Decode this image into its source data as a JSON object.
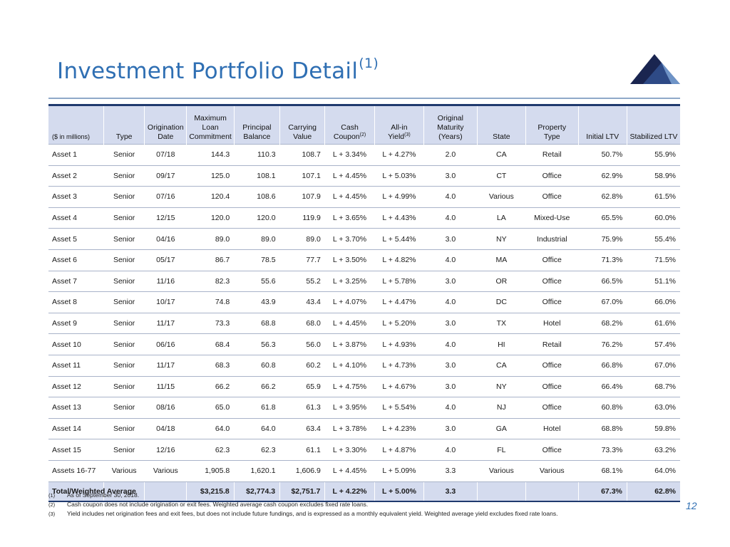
{
  "header": {
    "title": "Investment Portfolio Detail",
    "title_superscript": "(1)"
  },
  "logo": {
    "name": "mountain-logo",
    "colors": [
      "#1a2550",
      "#2e4a86",
      "#6e93c6"
    ]
  },
  "table": {
    "units_label": "($ in millions)",
    "columns": [
      {
        "key": "asset",
        "label": "($ in millions)"
      },
      {
        "key": "type",
        "label": "Type"
      },
      {
        "key": "origination_date",
        "label": "Origination Date"
      },
      {
        "key": "max_commitment",
        "label": "Maximum Loan Commitment"
      },
      {
        "key": "principal_balance",
        "label": "Principal Balance"
      },
      {
        "key": "carrying_value",
        "label": "Carrying Value"
      },
      {
        "key": "cash_coupon",
        "label": "Cash Coupon",
        "footnote": "(2)"
      },
      {
        "key": "all_in_yield",
        "label": "All-in Yield",
        "footnote": "(3)"
      },
      {
        "key": "original_maturity",
        "label": "Original Maturity (Years)"
      },
      {
        "key": "state",
        "label": "State"
      },
      {
        "key": "property_type",
        "label": "Property Type"
      },
      {
        "key": "initial_ltv",
        "label": "Initial LTV"
      },
      {
        "key": "stabilized_ltv",
        "label": "Stabilized LTV"
      }
    ],
    "header_lines": {
      "origination": [
        "Origination",
        "Date"
      ],
      "max_commitment": [
        "Maximum",
        "Loan",
        "Commitment"
      ],
      "principal": [
        "Principal",
        "Balance"
      ],
      "carrying": [
        "Carrying",
        "Value"
      ],
      "cash_coupon": [
        "Cash",
        "Coupon"
      ],
      "all_in": [
        "All-in",
        "Yield"
      ],
      "maturity": [
        "Original",
        "Maturity",
        "(Years)"
      ],
      "property": [
        "Property",
        "Type"
      ]
    },
    "rows": [
      [
        "Asset 1",
        "Senior",
        "07/18",
        "144.3",
        "110.3",
        "108.7",
        "L + 3.34%",
        "L + 4.27%",
        "2.0",
        "CA",
        "Retail",
        "50.7%",
        "55.9%"
      ],
      [
        "Asset 2",
        "Senior",
        "09/17",
        "125.0",
        "108.1",
        "107.1",
        "L + 4.45%",
        "L + 5.03%",
        "3.0",
        "CT",
        "Office",
        "62.9%",
        "58.9%"
      ],
      [
        "Asset 3",
        "Senior",
        "07/16",
        "120.4",
        "108.6",
        "107.9",
        "L + 4.45%",
        "L + 4.99%",
        "4.0",
        "Various",
        "Office",
        "62.8%",
        "61.5%"
      ],
      [
        "Asset 4",
        "Senior",
        "12/15",
        "120.0",
        "120.0",
        "119.9",
        "L + 3.65%",
        "L + 4.43%",
        "4.0",
        "LA",
        "Mixed-Use",
        "65.5%",
        "60.0%"
      ],
      [
        "Asset 5",
        "Senior",
        "04/16",
        "89.0",
        "89.0",
        "89.0",
        "L + 3.70%",
        "L + 5.44%",
        "3.0",
        "NY",
        "Industrial",
        "75.9%",
        "55.4%"
      ],
      [
        "Asset 6",
        "Senior",
        "05/17",
        "86.7",
        "78.5",
        "77.7",
        "L + 3.50%",
        "L + 4.82%",
        "4.0",
        "MA",
        "Office",
        "71.3%",
        "71.5%"
      ],
      [
        "Asset 7",
        "Senior",
        "11/16",
        "82.3",
        "55.6",
        "55.2",
        "L + 3.25%",
        "L + 5.78%",
        "3.0",
        "OR",
        "Office",
        "66.5%",
        "51.1%"
      ],
      [
        "Asset 8",
        "Senior",
        "10/17",
        "74.8",
        "43.9",
        "43.4",
        "L + 4.07%",
        "L + 4.47%",
        "4.0",
        "DC",
        "Office",
        "67.0%",
        "66.0%"
      ],
      [
        "Asset 9",
        "Senior",
        "11/17",
        "73.3",
        "68.8",
        "68.0",
        "L + 4.45%",
        "L + 5.20%",
        "3.0",
        "TX",
        "Hotel",
        "68.2%",
        "61.6%"
      ],
      [
        "Asset 10",
        "Senior",
        "06/16",
        "68.4",
        "56.3",
        "56.0",
        "L + 3.87%",
        "L + 4.93%",
        "4.0",
        "HI",
        "Retail",
        "76.2%",
        "57.4%"
      ],
      [
        "Asset 11",
        "Senior",
        "11/17",
        "68.3",
        "60.8",
        "60.2",
        "L + 4.10%",
        "L + 4.73%",
        "3.0",
        "CA",
        "Office",
        "66.8%",
        "67.0%"
      ],
      [
        "Asset 12",
        "Senior",
        "11/15",
        "66.2",
        "66.2",
        "65.9",
        "L + 4.75%",
        "L + 4.67%",
        "3.0",
        "NY",
        "Office",
        "66.4%",
        "68.7%"
      ],
      [
        "Asset 13",
        "Senior",
        "08/16",
        "65.0",
        "61.8",
        "61.3",
        "L + 3.95%",
        "L + 5.54%",
        "4.0",
        "NJ",
        "Office",
        "60.8%",
        "63.0%"
      ],
      [
        "Asset 14",
        "Senior",
        "04/18",
        "64.0",
        "64.0",
        "63.4",
        "L + 3.78%",
        "L + 4.23%",
        "3.0",
        "GA",
        "Hotel",
        "68.8%",
        "59.8%"
      ],
      [
        "Asset 15",
        "Senior",
        "12/16",
        "62.3",
        "62.3",
        "61.1",
        "L + 3.30%",
        "L + 4.87%",
        "4.0",
        "FL",
        "Office",
        "73.3%",
        "63.2%"
      ],
      [
        "Assets 16-77",
        "Various",
        "Various",
        "1,905.8",
        "1,620.1",
        "1,606.9",
        "L + 4.45%",
        "L + 5.09%",
        "3.3",
        "Various",
        "Various",
        "68.1%",
        "64.0%"
      ]
    ],
    "total": {
      "label": "Total/Weighted Average",
      "max_commitment": "$3,215.8",
      "principal_balance": "$2,774.3",
      "carrying_value": "$2,751.7",
      "cash_coupon": "L + 4.22%",
      "all_in_yield": "L + 5.00%",
      "original_maturity": "3.3",
      "initial_ltv": "67.3%",
      "stabilized_ltv": "62.8%"
    }
  },
  "footnotes": [
    {
      "num": "(1)",
      "text": "As of September 30, 2018."
    },
    {
      "num": "(2)",
      "text": "Cash coupon does not include origination or exit fees. Weighted average cash coupon excludes fixed rate loans."
    },
    {
      "num": "(3)",
      "text": "Yield includes net origination fees and exit fees, but does not include future fundings, and is expressed as a monthly equivalent yield.  Weighted average yield excludes fixed rate loans."
    }
  ],
  "page_number": "12",
  "colors": {
    "title": "#2f6fb3",
    "header_bg": "#d4dbee",
    "header_border": "#1f3a6e",
    "rule": "#8fa9c9"
  }
}
